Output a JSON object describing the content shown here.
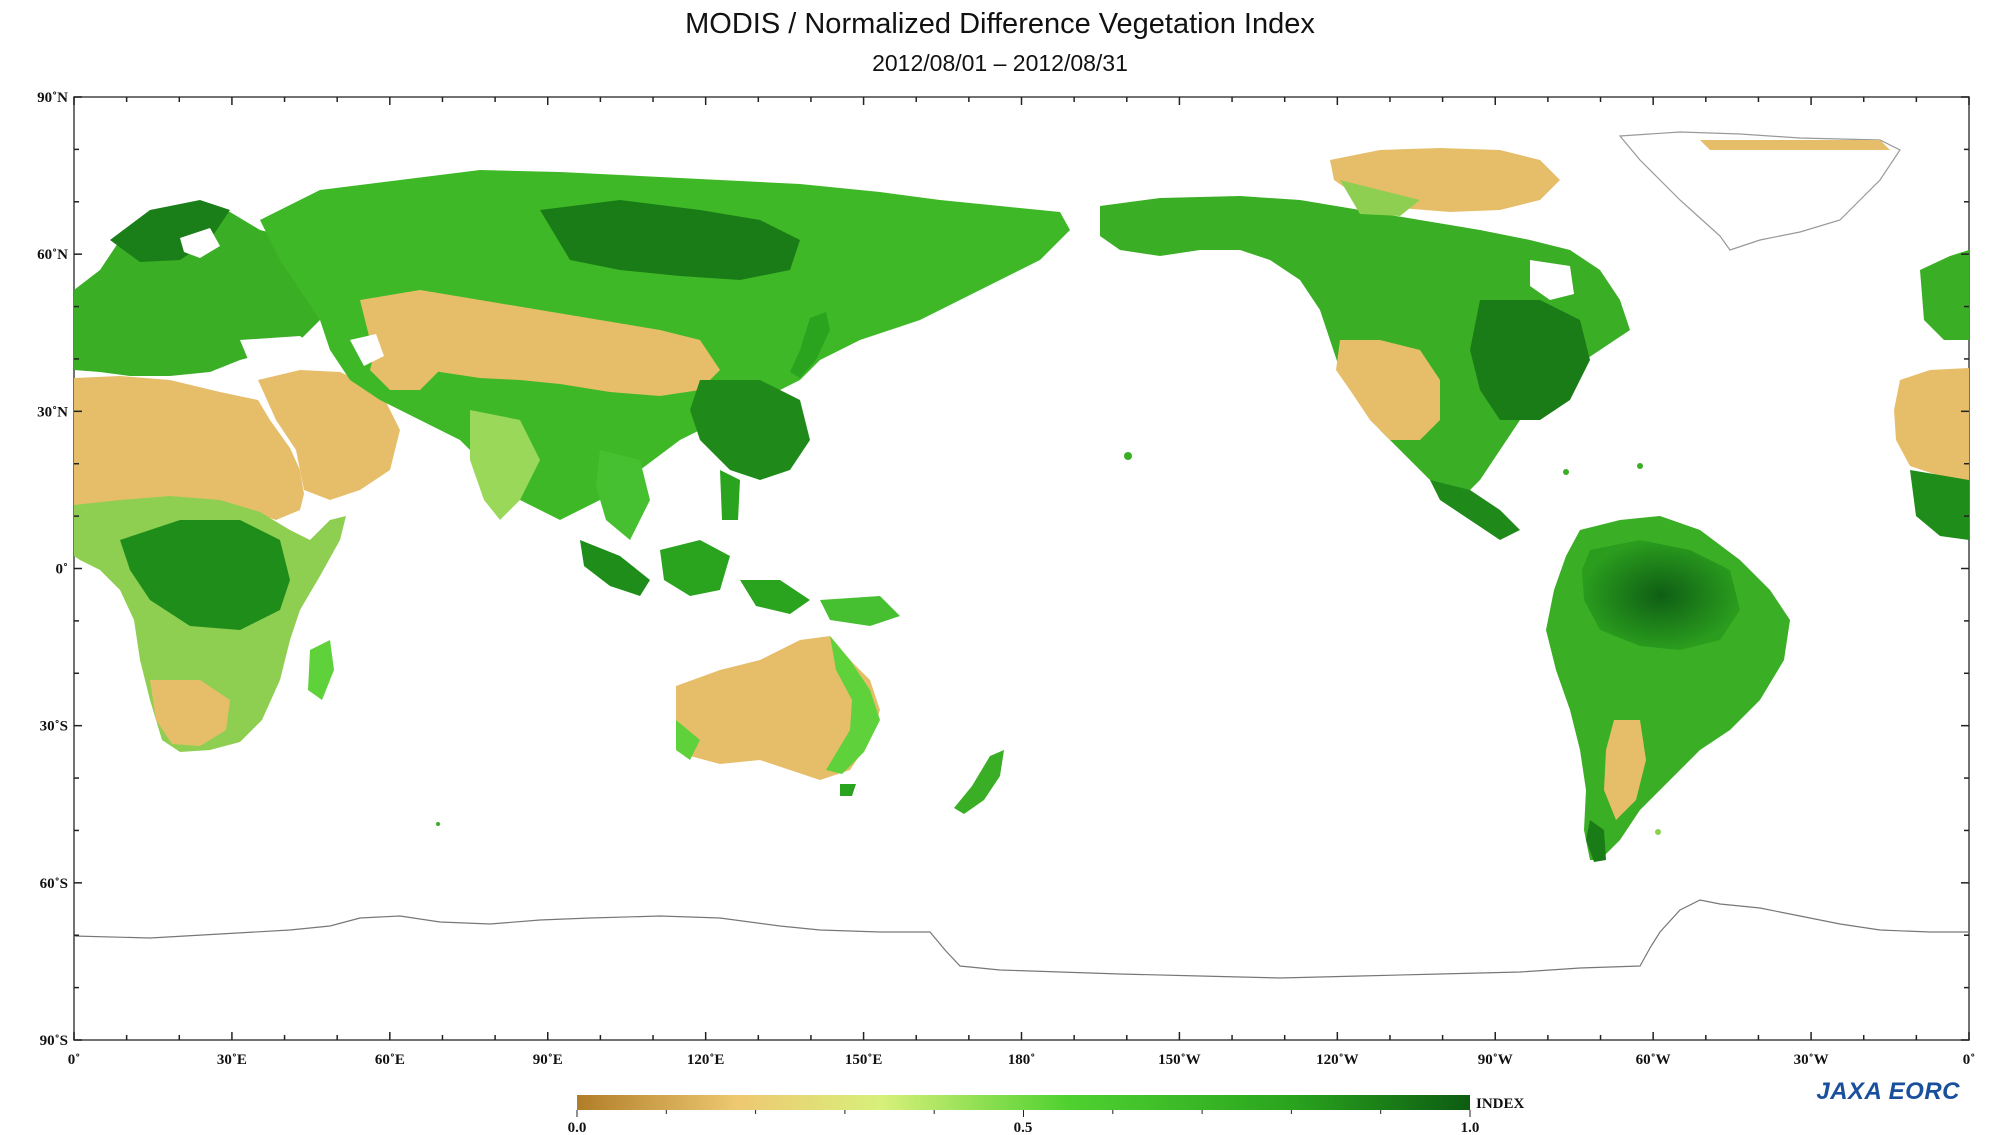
{
  "title": "MODIS / Normalized Difference Vegetation Index",
  "subtitle": "2012/08/01 – 2012/08/31",
  "lat_labels": [
    "90˚N",
    "60˚N",
    "30˚N",
    "0˚",
    "30˚S",
    "60˚S",
    "90˚S"
  ],
  "lon_labels": [
    "0˚",
    "30˚E",
    "60˚E",
    "90˚E",
    "120˚E",
    "150˚E",
    "180˚",
    "150˚W",
    "120˚W",
    "90˚W",
    "60˚W",
    "30˚W",
    "0˚"
  ],
  "colorbar": {
    "label": "INDEX",
    "ticks": [
      "0.0",
      "0.5",
      "1.0"
    ],
    "colors": [
      "#b07d28",
      "#eec872",
      "#d8f07a",
      "#4fd130",
      "#2aa41e",
      "#0d5c12"
    ]
  },
  "logo": {
    "mark": "JAXA",
    "text": "EORC"
  },
  "colors": {
    "desert": "#e6be6a",
    "savanna": "#c6e86e",
    "grassland": "#6ad83c",
    "forest": "#2aa41e",
    "rainforest": "#0f6a15",
    "ice": "#ffffff",
    "coast": "#777777"
  }
}
